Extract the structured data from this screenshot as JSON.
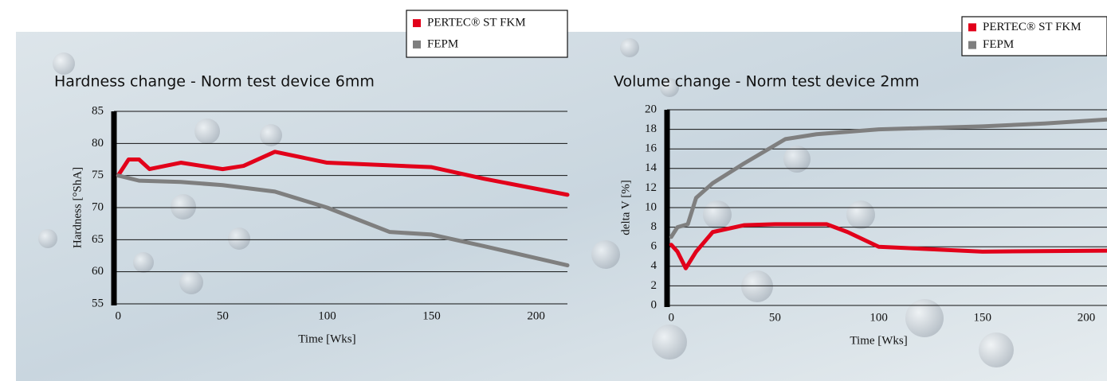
{
  "chart_data": [
    {
      "type": "line",
      "title": "Hardness change - Norm test device 6mm",
      "x_label": "Time [Wks]",
      "y_label": "Hardness [°ShA]",
      "xlim": [
        -2,
        215
      ],
      "ylim": [
        55,
        85
      ],
      "xticks": [
        0,
        50,
        100,
        150,
        200
      ],
      "yticks": [
        55,
        60,
        65,
        70,
        75,
        80,
        85
      ],
      "grid": true,
      "legend": "top-right",
      "series": [
        {
          "name": "PERTEC® ST FKM",
          "color": "#e2001a",
          "x": [
            0,
            5,
            10,
            15,
            30,
            50,
            60,
            75,
            100,
            150,
            175,
            215
          ],
          "values": [
            75,
            77.5,
            77.5,
            76,
            77,
            76,
            76.5,
            78.7,
            77,
            76.3,
            74.5,
            72
          ]
        },
        {
          "name": "FEPM",
          "color": "#7f7f7f",
          "x": [
            0,
            10,
            30,
            50,
            75,
            100,
            130,
            150,
            175,
            215
          ],
          "values": [
            75,
            74.2,
            74,
            73.5,
            72.5,
            70,
            66.2,
            65.8,
            64,
            61
          ]
        }
      ]
    },
    {
      "type": "line",
      "title": "Volume change - Norm test device 2mm",
      "x_label": "Time [Wks]",
      "y_label": "delta V [%]",
      "xlim": [
        -2,
        210
      ],
      "ylim": [
        0,
        20
      ],
      "xticks": [
        0,
        50,
        100,
        150,
        200
      ],
      "yticks": [
        0,
        2,
        4,
        6,
        8,
        10,
        12,
        14,
        16,
        18,
        20
      ],
      "grid": true,
      "legend": "top-right",
      "series": [
        {
          "name": "PERTEC® ST FKM",
          "color": "#e2001a",
          "x": [
            0,
            3,
            7,
            12,
            20,
            35,
            50,
            75,
            85,
            100,
            150,
            210
          ],
          "values": [
            6.2,
            5.5,
            3.8,
            5.5,
            7.5,
            8.2,
            8.3,
            8.3,
            7.5,
            6,
            5.5,
            5.6
          ]
        },
        {
          "name": "FEPM",
          "color": "#7f7f7f",
          "x": [
            0,
            3,
            8,
            12,
            20,
            35,
            55,
            70,
            100,
            150,
            180,
            210
          ],
          "values": [
            7,
            8,
            8.3,
            11,
            12.5,
            14.5,
            17,
            17.5,
            18,
            18.3,
            18.6,
            19
          ]
        }
      ]
    }
  ]
}
